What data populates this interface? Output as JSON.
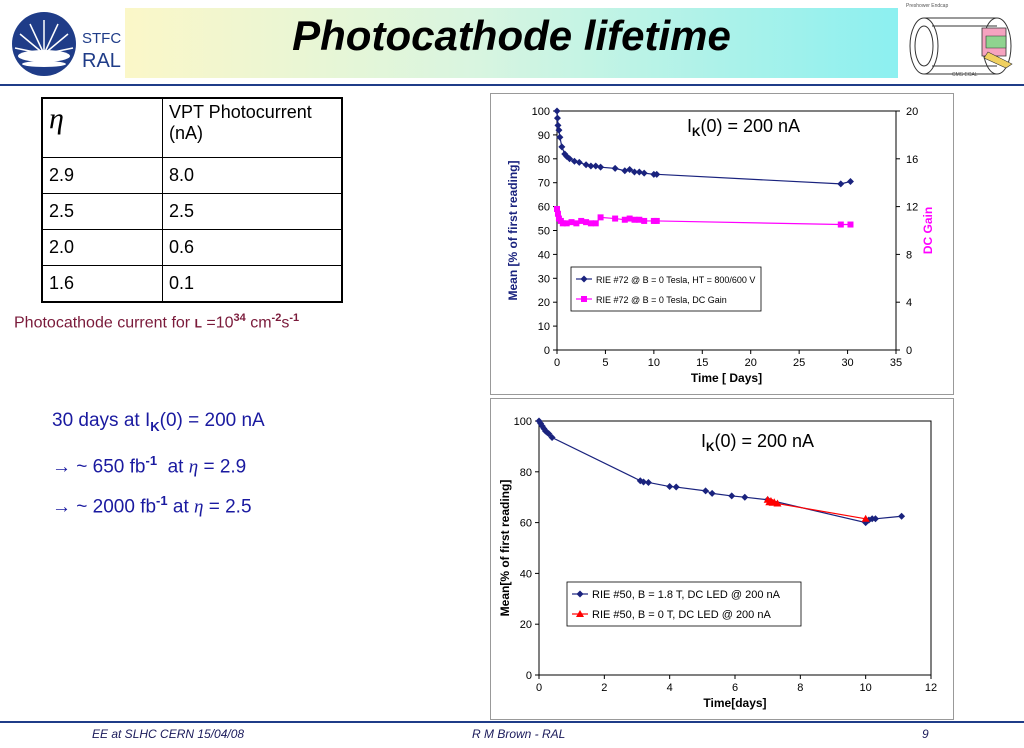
{
  "header": {
    "title": "Photocathode lifetime",
    "logo_text_1": "STFC",
    "logo_text_2": "RAL",
    "cms_caption_top": "Preshower Endcap",
    "cms_caption_bottom": "CMS ECAL"
  },
  "table": {
    "headers": [
      "η",
      "VPT Photocurrent (nA)"
    ],
    "rows": [
      [
        "2.9",
        "8.0"
      ],
      [
        "2.5",
        "2.5"
      ],
      [
        "2.0",
        "0.6"
      ],
      [
        "1.6",
        "0.1"
      ]
    ]
  },
  "cathode_note": {
    "prefix": "Photocathode current for ",
    "symbol": "L",
    "eq": " =10",
    "exp1": "34",
    "unit1": " cm",
    "exp2": "-2",
    "unit2": "s",
    "exp3": "-1"
  },
  "notes": {
    "line1_pre": "30 days at I",
    "line1_sub": "K",
    "line1_post": "(0) = 200 nA",
    "line2_pre": "→ ~ 650 fb",
    "line2_sup": "-1",
    "line2_mid": "  at ",
    "line2_eta": "η",
    "line2_post": " = 2.9",
    "line3_pre": "→ ~ 2000 fb",
    "line3_sup": "-1",
    "line3_mid": " at ",
    "line3_eta": "η",
    "line3_post": " = 2.5"
  },
  "footer": {
    "left": "EE at SLHC CERN 15/04/08",
    "center": "R M Brown - RAL",
    "page": "9"
  },
  "chart_data": [
    {
      "type": "line",
      "annotation": {
        "pre": "I",
        "sub": "K",
        "post": "(0) = 200 nA"
      },
      "xlabel": "Time [ Days]",
      "ylabel": "Mean [% of first reading]",
      "y2label": "DC Gain",
      "xlim": [
        0,
        35
      ],
      "ylim": [
        0,
        100
      ],
      "y2lim": [
        0,
        20
      ],
      "xticks": [
        "0",
        "5",
        "10",
        "15",
        "20",
        "25",
        "30",
        "35"
      ],
      "yticks": [
        "0",
        "10",
        "20",
        "30",
        "40",
        "50",
        "60",
        "70",
        "80",
        "90",
        "100"
      ],
      "y2ticks": [
        "0",
        "4",
        "8",
        "12",
        "16",
        "20"
      ],
      "legend_position": "bottom-center",
      "series_color": "#1a237e",
      "series2_color": "#ff00ff",
      "series": [
        {
          "name": "RIE #72 @ B = 0 Tesla, HT = 800/600 V",
          "axis": "left",
          "color": "#1a237e",
          "marker": "diamond",
          "x": [
            0,
            0.05,
            0.1,
            0.2,
            0.3,
            0.5,
            0.8,
            1.0,
            1.3,
            1.8,
            2.3,
            3.0,
            3.5,
            4.0,
            4.5,
            6.0,
            7.0,
            7.5,
            8.0,
            8.5,
            9.0,
            10.0,
            10.3,
            29.3,
            30.3
          ],
          "y": [
            100,
            97,
            94,
            92,
            89,
            85,
            82,
            81,
            80,
            79,
            78.5,
            77.5,
            77,
            77,
            76.5,
            76,
            75,
            75.5,
            74.5,
            74.5,
            74,
            73.5,
            73.5,
            69.5,
            70.5
          ]
        },
        {
          "name": "RIE #72 @ B = 0 Tesla, DC Gain",
          "axis": "right",
          "color": "#ff00ff",
          "marker": "square",
          "x": [
            0,
            0.1,
            0.2,
            0.4,
            0.6,
            1.0,
            1.5,
            2.0,
            2.5,
            3.0,
            3.5,
            4.0,
            4.5,
            6.0,
            7.0,
            7.5,
            8.0,
            8.5,
            9.0,
            10.0,
            10.3,
            29.3,
            30.3
          ],
          "y": [
            11.8,
            11.4,
            11.0,
            10.8,
            10.6,
            10.6,
            10.7,
            10.6,
            10.8,
            10.7,
            10.6,
            10.6,
            11.1,
            11.0,
            10.9,
            11.0,
            10.9,
            10.9,
            10.8,
            10.8,
            10.8,
            10.5,
            10.5
          ]
        }
      ]
    },
    {
      "type": "line",
      "annotation": {
        "pre": "I",
        "sub": "K",
        "post": "(0) = 200 nA"
      },
      "xlabel": "Time[days]",
      "ylabel": "Mean[% of first reading]",
      "xlim": [
        0,
        12
      ],
      "ylim": [
        0,
        100
      ],
      "xticks": [
        "0",
        "2",
        "4",
        "6",
        "8",
        "10",
        "12"
      ],
      "yticks": [
        "0",
        "20",
        "40",
        "60",
        "80",
        "100"
      ],
      "legend_position": "bottom-center",
      "series": [
        {
          "name": "RIE #50, B = 1.8 T, DC LED @ 200 nA",
          "color": "#1a237e",
          "marker": "diamond",
          "x": [
            0,
            0.05,
            0.1,
            0.15,
            0.2,
            0.25,
            0.3,
            0.4,
            3.1,
            3.2,
            3.35,
            4.0,
            4.2,
            5.1,
            5.3,
            5.9,
            6.3,
            7.0,
            10.0,
            10.1,
            10.2,
            10.3,
            11.1
          ],
          "y": [
            100,
            99,
            98,
            97,
            96,
            95.5,
            95,
            93.5,
            76.5,
            76,
            75.8,
            74.2,
            74,
            72.5,
            71.5,
            70.5,
            70,
            69,
            60,
            61,
            61.5,
            61.5,
            62.5
          ]
        },
        {
          "name": "RIE #50, B = 0 T, DC LED @ 200 nA",
          "color": "#ff0000",
          "marker": "triangle",
          "x": [
            7.0,
            7.05,
            7.1,
            7.15,
            7.2,
            7.3,
            10.0
          ],
          "y": [
            69,
            68,
            68.5,
            67.8,
            68,
            67.5,
            61.5
          ]
        }
      ]
    }
  ]
}
